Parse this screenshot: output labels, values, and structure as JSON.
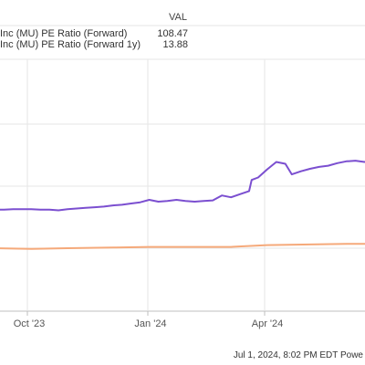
{
  "legend": {
    "value_header": "VAL",
    "rows": [
      {
        "label": "Inc (MU) PE Ratio (Forward)",
        "value": "108.47",
        "color": "#7b4fd0"
      },
      {
        "label": "Inc (MU) PE Ratio (Forward 1y)",
        "value": "13.88",
        "color": "#f5a97a"
      }
    ]
  },
  "footer": {
    "text": "Jul 1, 2024, 8:02 PM EDT Powe"
  },
  "chart_data": {
    "type": "line",
    "title": "",
    "xlabel": "",
    "ylabel": "",
    "x_tick_labels": [
      "Oct '23",
      "Jan '24",
      "Apr '24"
    ],
    "grid": "vertical lines at month ticks, horizontal lines on value axis",
    "legend_placement": "top",
    "series": [
      {
        "name": "Inc (MU) PE Ratio (Forward)",
        "color": "#7b4fd0",
        "x": [
          "2023-09-06",
          "2023-09-13",
          "2023-09-20",
          "2023-09-27",
          "2023-10-04",
          "2023-10-11",
          "2023-10-18",
          "2023-10-25",
          "2023-11-01",
          "2023-11-08",
          "2023-11-15",
          "2023-11-22",
          "2023-11-29",
          "2023-12-06",
          "2023-12-13",
          "2023-12-20",
          "2023-12-27",
          "2024-01-03",
          "2024-01-10",
          "2024-01-17",
          "2024-01-24",
          "2024-01-31",
          "2024-02-07",
          "2024-02-14",
          "2024-02-21",
          "2024-02-28",
          "2024-03-06",
          "2024-03-13",
          "2024-03-20",
          "2024-03-22",
          "2024-03-27",
          "2024-04-03",
          "2024-04-10",
          "2024-04-17",
          "2024-04-22",
          "2024-04-29",
          "2024-05-06",
          "2024-05-13",
          "2024-05-20",
          "2024-05-27",
          "2024-06-03",
          "2024-06-10",
          "2024-06-17",
          "2024-06-24",
          "2024-07-01"
        ],
        "values": [
          -38,
          -38,
          -37,
          -37,
          -37,
          -38,
          -38,
          -39,
          -37,
          -36,
          -35,
          -34,
          -33,
          -31,
          -30,
          -28,
          -26,
          -22,
          -25,
          -24,
          -22,
          -24,
          -25,
          -24,
          -23,
          -15,
          -18,
          -13,
          -8,
          10,
          14,
          27,
          39,
          36,
          19,
          24,
          28,
          31,
          33,
          37,
          40,
          41,
          39,
          42,
          41
        ]
      },
      {
        "name": "Inc (MU) PE Ratio (Forward 1y)",
        "color": "#f5a97a",
        "x": [
          "2023-09-06",
          "2023-10-04",
          "2023-11-01",
          "2023-12-06",
          "2024-01-03",
          "2024-02-07",
          "2024-03-06",
          "2024-04-03",
          "2024-05-06",
          "2024-06-03",
          "2024-07-01"
        ],
        "values": [
          -100,
          -101,
          -100,
          -99,
          -98,
          -98,
          -98,
          -95,
          -94,
          -93,
          -93
        ]
      }
    ]
  }
}
